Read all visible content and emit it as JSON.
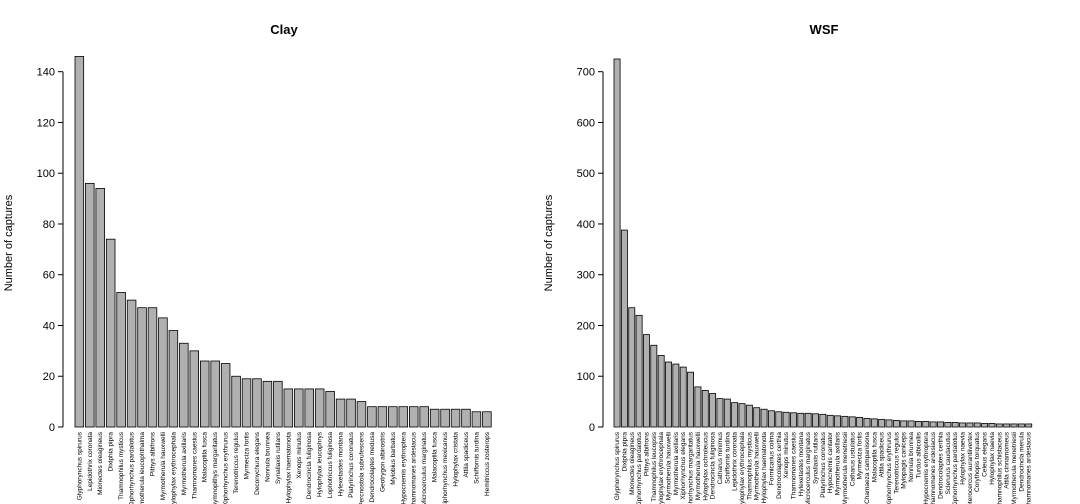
{
  "chart_data": [
    {
      "type": "bar",
      "title": "Clay",
      "ylabel": "Number of captures",
      "ylim": [
        0,
        145
      ],
      "yticks": [
        0,
        20,
        40,
        60,
        80,
        100,
        120,
        140
      ],
      "categories": [
        "Glyphorynchus spirurus",
        "Lepidothrix coronata",
        "Mionectes oleagineus",
        "Dixiphia pipra",
        "Thamnophilus mysticus",
        "Xiphorhynchus pardalotus",
        "Myrmotherula leucophthalma",
        "Pithys albifrons",
        "Myrmotherula hauxwelli",
        "Hylophylax erythrocephala",
        "Myrmotherula axillaris",
        "Thamnomanes caesius",
        "Malacoptila fusca",
        "Gymnopithys margaritatus",
        "Xiphorhynchus erythrurus",
        "Terenotriccus regulus",
        "Myrmeciza fortis",
        "Deconychura elegans",
        "Nonnula brunnea",
        "Synallaxis rutilans",
        "Hylophylax haematonota",
        "Xenops minutus",
        "Dendrocincla fuliginosa",
        "Hylophylax leucophrys",
        "Lophotriccus fuliginosa",
        "Hylexetastes montana",
        "Platyrinchus coronatus",
        "Percnostola subrufescens",
        "Dendrocolaptes medusa",
        "Geotrygon albirostris",
        "Myiobius barbatus",
        "Hypocnemis erythroptera",
        "Thamnomanes ardesiacus",
        "Microcerculus marginatus",
        "Malacoptila fusca",
        "Xiphorhynchus mexicanus",
        "Hylophylax cristata",
        "Attila spadiceus",
        "Schiffornis turdina",
        "Hemitriccus zosterops"
      ],
      "values": [
        146,
        96,
        94,
        74,
        53,
        50,
        47,
        47,
        43,
        38,
        33,
        30,
        26,
        26,
        25,
        20,
        19,
        19,
        18,
        18,
        15,
        15,
        15,
        15,
        14,
        11,
        11,
        10,
        8,
        8,
        8,
        8,
        8,
        8,
        7,
        7,
        7,
        7,
        6,
        6
      ]
    },
    {
      "type": "bar",
      "title": "WSF",
      "ylabel": "Number of captures",
      "ylim": [
        0,
        725
      ],
      "yticks": [
        0,
        100,
        200,
        300,
        400,
        500,
        600,
        700
      ],
      "categories": [
        "Glyphorynchus spirurus",
        "Dixiphia pipra",
        "Mionectes oleagineus",
        "Xiphorhynchus pardalotus",
        "Pithys albifrons",
        "Thamnophilus leucopsis",
        "Hylophylax erythrocephala",
        "Myrmotherula hauxwelli",
        "Myrmotherula axillaris",
        "Xiphorhynchus elegans",
        "Xiphorhynchus margaritatus",
        "Myrmotherula hauxwelli",
        "Hylophylax ochroleucus",
        "Dendrocincla fuliginosa",
        "Catharus minimus",
        "Schiffornis turdina",
        "Lepidothrix coronata",
        "Hylophylax erythrocephala",
        "Thamnophilus mysticus",
        "Myrmotherula hauxwelli",
        "Hylophylax haematonota",
        "Formicarius colma",
        "Dendrocolaptes certhia",
        "Xenops minutus",
        "Thamnomanes caesius",
        "Hylexetastes montana",
        "Microcerculus marginatus",
        "Synallaxis rutilans",
        "Platyrinchus coronatus",
        "Hypocnemis cantator",
        "Myrmotherula axillaris",
        "Myrmotherula menetriesii",
        "Catharus ustulatus",
        "Myrmeciza fortis",
        "Chamaeza campanisona",
        "Malacoptila fusca",
        "Attila spadiceus",
        "Xiphorhynchus erythrurus",
        "Terenotriccus regulus",
        "Myiopagis caniceps",
        "Nonnula brunnea",
        "Turdus albicollis",
        "Hypocnemis erythroptera",
        "Thamnomanes ardesiacus",
        "Dendrocolaptes certhia",
        "Sclerurus caudacutus",
        "Xiphorhynchus pardalotus",
        "Hylophylax naevia",
        "Heterocercus aurantiivertex",
        "Corythopis torquatus",
        "Celeus elegans",
        "Hylophylax naevia",
        "Thamnophilus schistaceus",
        "Attila cinnamomeus",
        "Myrmotherula menetriesii",
        "Dendrocincla merula",
        "Thamnomanes ardesiacus"
      ],
      "values": [
        725,
        388,
        235,
        220,
        182,
        161,
        141,
        128,
        124,
        118,
        108,
        79,
        72,
        66,
        56,
        55,
        48,
        46,
        43,
        38,
        35,
        32,
        30,
        29,
        28,
        27,
        27,
        26,
        25,
        23,
        22,
        21,
        20,
        19,
        17,
        16,
        15,
        14,
        13,
        12,
        12,
        11,
        11,
        10,
        10,
        9,
        9,
        8,
        8,
        8,
        7,
        7,
        6,
        6,
        6,
        6,
        6
      ]
    }
  ]
}
